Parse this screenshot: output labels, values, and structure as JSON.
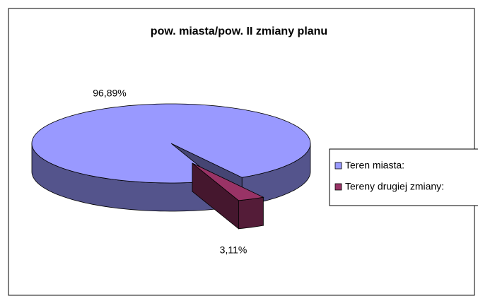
{
  "chart_data": {
    "type": "pie",
    "title": "pow. miasta/pow. II zmiany planu",
    "categories": [
      "Teren miasta:",
      "Tereny drugiej zmiany:"
    ],
    "values": [
      96.89,
      3.11
    ],
    "value_labels": [
      "96,89%",
      "3,11%"
    ],
    "colors": [
      "#9999ff",
      "#993366"
    ],
    "legend": "right"
  }
}
